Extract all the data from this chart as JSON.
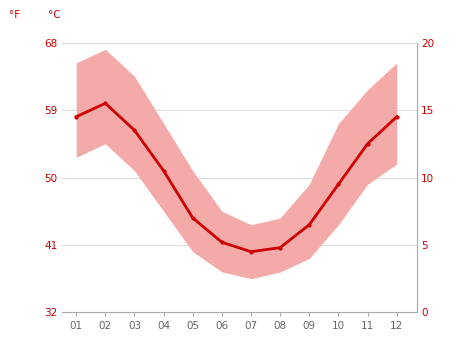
{
  "months": [
    1,
    2,
    3,
    4,
    5,
    6,
    7,
    8,
    9,
    10,
    11,
    12
  ],
  "month_labels": [
    "01",
    "02",
    "03",
    "04",
    "05",
    "06",
    "07",
    "08",
    "09",
    "10",
    "11",
    "12"
  ],
  "avg_temp_c": [
    14.5,
    15.5,
    13.5,
    10.5,
    7.0,
    5.2,
    4.5,
    4.8,
    6.5,
    9.5,
    12.5,
    14.5
  ],
  "max_temp_c": [
    18.5,
    19.5,
    17.5,
    14.0,
    10.5,
    7.5,
    6.5,
    7.0,
    9.5,
    14.0,
    16.5,
    18.5
  ],
  "min_temp_c": [
    11.5,
    12.5,
    10.5,
    7.5,
    4.5,
    3.0,
    2.5,
    3.0,
    4.0,
    6.5,
    9.5,
    11.0
  ],
  "yticks_c": [
    0,
    5,
    10,
    15,
    20
  ],
  "yticks_f": [
    32,
    41,
    50,
    59,
    68
  ],
  "ylim_c": [
    0,
    20
  ],
  "xlim": [
    0.5,
    12.7
  ],
  "line_color": "#cc0000",
  "band_color": "#f5aaaa",
  "axis_color": "#cc0000",
  "grid_color": "#dddddd",
  "xtick_color": "#888888",
  "spine_color": "#aaaaaa",
  "bg_color": "#ffffff",
  "label_f": "°F",
  "label_c": "°C",
  "figsize": [
    4.74,
    3.55
  ],
  "dpi": 100
}
